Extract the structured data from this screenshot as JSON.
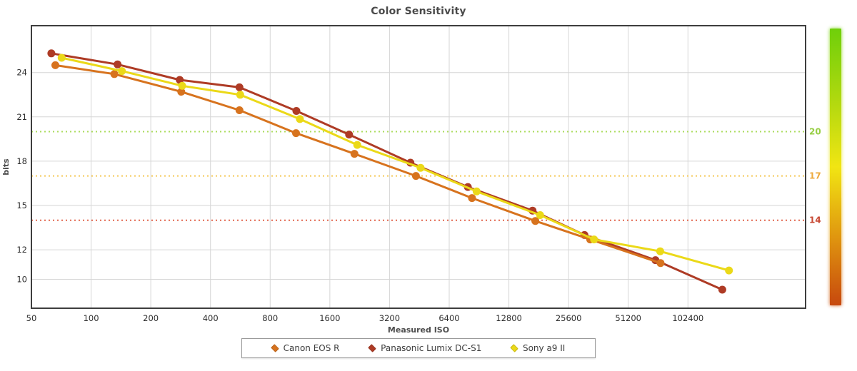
{
  "title": "Color Sensitivity",
  "chart_data": {
    "type": "line",
    "title": "Color Sensitivity",
    "xlabel": "Measured ISO",
    "ylabel": "bits",
    "x_scale": "log2",
    "grid": true,
    "legend_position": "bottom",
    "x_ticks": [
      50,
      100,
      200,
      400,
      800,
      1600,
      3200,
      6400,
      12800,
      25600,
      51200,
      102400
    ],
    "x_tick_labels": [
      "50",
      "100",
      "200",
      "400",
      "800",
      "1600",
      "3200",
      "6400",
      "12800",
      "25600",
      "51200",
      "102400"
    ],
    "y_ticks": [
      24,
      21,
      18,
      15,
      12,
      10
    ],
    "x_range": [
      50,
      400000
    ],
    "y_range": [
      8.1,
      27.2
    ],
    "thresholds": [
      {
        "value": 20,
        "label": "20",
        "line_color": "#abdc5e",
        "label_color": "#97ce44"
      },
      {
        "value": 17,
        "label": "17",
        "line_color": "#f5c95b",
        "label_color": "#eda93c"
      },
      {
        "value": 14,
        "label": "14",
        "line_color": "#e2674f",
        "label_color": "#c74934"
      }
    ],
    "series": [
      {
        "name": "Canon EOS R",
        "color": "#d7731e",
        "points": [
          [
            66,
            24.5
          ],
          [
            131,
            23.9
          ],
          [
            285,
            22.7
          ],
          [
            560,
            21.45
          ],
          [
            1080,
            19.9
          ],
          [
            2130,
            18.5
          ],
          [
            4350,
            17.0
          ],
          [
            8340,
            15.5
          ],
          [
            17400,
            13.95
          ],
          [
            32900,
            12.7
          ],
          [
            74500,
            11.1
          ]
        ]
      },
      {
        "name": "Panasonic Lumix DC-S1",
        "color": "#ae3b25",
        "points": [
          [
            63,
            25.3
          ],
          [
            136,
            24.55
          ],
          [
            280,
            23.5
          ],
          [
            560,
            23.0
          ],
          [
            1085,
            21.4
          ],
          [
            2000,
            19.8
          ],
          [
            4080,
            17.9
          ],
          [
            7950,
            16.25
          ],
          [
            16850,
            14.65
          ],
          [
            30800,
            13.0
          ],
          [
            70200,
            11.3
          ],
          [
            152700,
            9.3
          ]
        ]
      },
      {
        "name": "Sony a9 II",
        "color": "#ebd918",
        "points": [
          [
            71,
            25.0
          ],
          [
            143,
            24.1
          ],
          [
            288,
            23.1
          ],
          [
            565,
            22.5
          ],
          [
            1130,
            20.85
          ],
          [
            2200,
            19.1
          ],
          [
            4590,
            17.55
          ],
          [
            8800,
            15.95
          ],
          [
            18400,
            14.35
          ],
          [
            34400,
            12.7
          ],
          [
            74200,
            11.9
          ],
          [
            164900,
            10.6
          ]
        ]
      }
    ],
    "draw_order": [
      1,
      0,
      2
    ],
    "colorbar": {
      "stops": [
        {
          "offset": "0%",
          "color": "#6fcf0a"
        },
        {
          "offset": "27%",
          "color": "#b3d90f"
        },
        {
          "offset": "50%",
          "color": "#f1e513"
        },
        {
          "offset": "75%",
          "color": "#e0970f"
        },
        {
          "offset": "100%",
          "color": "#c7480e"
        }
      ]
    }
  }
}
